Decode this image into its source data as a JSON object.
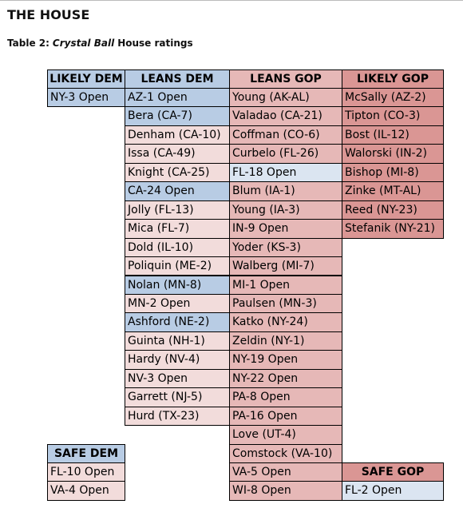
{
  "header": {
    "title": "THE HOUSE"
  },
  "caption": {
    "label": "Table 2:",
    "source": "Crystal Ball",
    "rest": "House ratings"
  },
  "table": {
    "columns": [
      {
        "header": "LIKELY DEM",
        "cells": [
          "NY-3 Open"
        ]
      },
      {
        "header": "LEANS DEM",
        "cells": [
          "AZ-1 Open",
          "Bera (CA-7)",
          "Denham (CA-10)",
          "Issa (CA-49)",
          "Knight (CA-25)",
          "CA-24 Open",
          "Jolly (FL-13)",
          "Mica (FL-7)",
          "Dold (IL-10)",
          "Poliquin (ME-2)",
          "Nolan (MN-8)",
          "MN-2 Open",
          "Ashford (NE-2)",
          "Guinta (NH-1)",
          "Hardy (NV-4)",
          "NV-3 Open",
          "Garrett (NJ-5)",
          "Hurd (TX-23)"
        ]
      },
      {
        "header": "LEANS GOP",
        "cells": [
          "Young (AK-AL)",
          "Valadao (CA-21)",
          "Coffman (CO-6)",
          "Curbelo (FL-26)",
          "FL-18 Open",
          "Blum (IA-1)",
          "Young (IA-3)",
          "IN-9 Open",
          "Yoder (KS-3)",
          "Walberg (MI-7)",
          "MI-1 Open",
          "Paulsen (MN-3)",
          "Katko (NY-24)",
          "Zeldin (NY-1)",
          "NY-19 Open",
          "NY-22 Open",
          "PA-8 Open",
          "PA-16 Open",
          "Love (UT-4)",
          "Comstock (VA-10)",
          "VA-5 Open",
          "WI-8 Open"
        ]
      },
      {
        "header": "LIKELY GOP",
        "cells": [
          "McSally (AZ-2)",
          "Tipton (CO-3)",
          "Bost (IL-12)",
          "Walorski (IN-2)",
          "Bishop (MI-8)",
          "Zinke (MT-AL)",
          "Reed (NY-23)",
          "Stefanik (NY-21)"
        ]
      }
    ],
    "safe_dem": {
      "header": "SAFE DEM",
      "cells": [
        "FL-10 Open",
        "VA-4 Open"
      ]
    },
    "safe_gop": {
      "header": "SAFE GOP",
      "cells": [
        "FL-2 Open"
      ]
    }
  }
}
